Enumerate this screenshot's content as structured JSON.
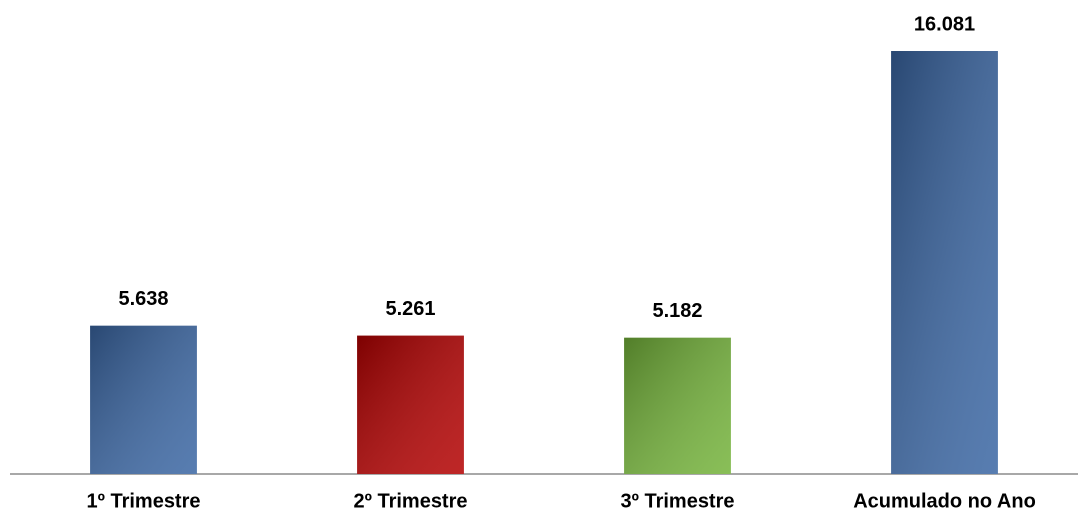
{
  "chart_data": {
    "type": "bar",
    "categories": [
      "1º Trimestre",
      "2º Trimestre",
      "3º Trimestre",
      "Acumulado no Ano"
    ],
    "values": [
      5638,
      5261,
      5182,
      16081
    ],
    "value_labels": [
      "5.638",
      "5.261",
      "5.182",
      "16.081"
    ],
    "colors": [
      "#3a66a3",
      "#b30000",
      "#74b33a",
      "#3a66a3"
    ]
  }
}
